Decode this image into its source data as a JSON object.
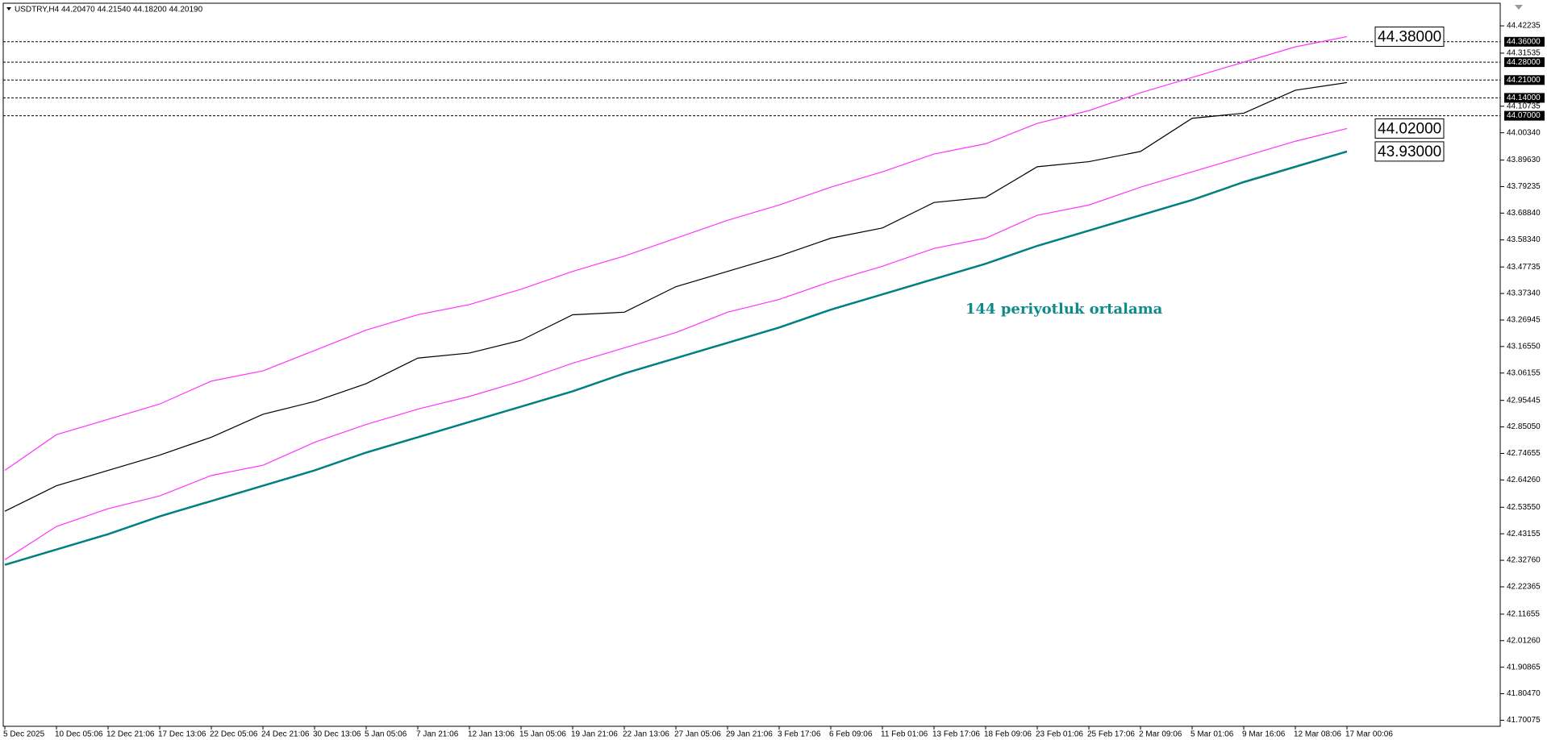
{
  "chart_data": {
    "type": "line",
    "header": "USDTRY,H4  44.20470 44.21540 44.18200 44.20190",
    "annotation": "144 periyotluk ortalama",
    "categories": [
      "5 Dec 2025",
      "10 Dec 05:06",
      "12 Dec 21:06",
      "17 Dec 13:06",
      "22 Dec 05:06",
      "24 Dec 21:06",
      "30 Dec 13:06",
      "5 Jan 05:06",
      "7 Jan 21:06",
      "12 Jan 13:06",
      "15 Jan 05:06",
      "19 Jan 21:06",
      "22 Jan 13:06",
      "27 Jan 05:06",
      "29 Jan 21:06",
      "3 Feb 17:06",
      "6 Feb 09:06",
      "11 Feb 01:06",
      "13 Feb 17:06",
      "18 Feb 09:06",
      "23 Feb 01:06",
      "25 Feb 17:06",
      "2 Mar 09:06",
      "5 Mar 01:06",
      "9 Mar 16:06",
      "12 Mar 08:06",
      "17 Mar 00:06"
    ],
    "series": [
      {
        "color": "#000000",
        "values": [
          42.52,
          42.62,
          42.68,
          42.74,
          42.81,
          42.9,
          42.95,
          43.02,
          43.12,
          43.14,
          43.19,
          43.29,
          43.3,
          43.4,
          43.46,
          43.52,
          43.59,
          43.63,
          43.73,
          43.75,
          43.87,
          43.89,
          43.93,
          44.06,
          44.08,
          44.17,
          44.2
        ]
      },
      {
        "color": "#ff33ff",
        "values": [
          42.68,
          42.82,
          42.88,
          42.94,
          43.03,
          43.07,
          43.15,
          43.23,
          43.29,
          43.33,
          43.39,
          43.46,
          43.52,
          43.59,
          43.66,
          43.72,
          43.79,
          43.85,
          43.92,
          43.96,
          44.04,
          44.09,
          44.16,
          44.22,
          44.28,
          44.34,
          44.38
        ]
      },
      {
        "color": "#ff33ff",
        "values": [
          42.33,
          42.46,
          42.53,
          42.58,
          42.66,
          42.7,
          42.79,
          42.86,
          42.92,
          42.97,
          43.03,
          43.1,
          43.16,
          43.22,
          43.3,
          43.35,
          43.42,
          43.48,
          43.55,
          43.59,
          43.68,
          43.72,
          43.79,
          43.85,
          43.91,
          43.97,
          44.02
        ]
      },
      {
        "color": "#008080",
        "values": [
          42.31,
          42.37,
          42.43,
          42.5,
          42.56,
          42.62,
          42.68,
          42.75,
          42.81,
          42.87,
          42.93,
          42.99,
          43.06,
          43.12,
          43.18,
          43.24,
          43.31,
          43.37,
          43.43,
          43.49,
          43.56,
          43.62,
          43.68,
          43.74,
          43.81,
          43.87,
          43.93
        ]
      }
    ],
    "ylim": [
      41.677,
      44.511
    ],
    "yticks": [
      {
        "value": 44.42235,
        "label": "44.42235"
      },
      {
        "value": 44.31535,
        "label": "44.31535"
      },
      {
        "value": 44.10735,
        "label": "44.10735"
      },
      {
        "value": 44.0034,
        "label": "44.00340"
      },
      {
        "value": 43.8963,
        "label": "43.89630"
      },
      {
        "value": 43.79235,
        "label": "43.79235"
      },
      {
        "value": 43.6884,
        "label": "43.68840"
      },
      {
        "value": 43.5834,
        "label": "43.58340"
      },
      {
        "value": 43.47735,
        "label": "43.47735"
      },
      {
        "value": 43.3734,
        "label": "43.37340"
      },
      {
        "value": 43.26945,
        "label": "43.26945"
      },
      {
        "value": 43.1655,
        "label": "43.16550"
      },
      {
        "value": 43.06155,
        "label": "43.06155"
      },
      {
        "value": 42.95445,
        "label": "42.95445"
      },
      {
        "value": 42.8505,
        "label": "42.85050"
      },
      {
        "value": 42.74655,
        "label": "42.74655"
      },
      {
        "value": 42.6426,
        "label": "42.64260"
      },
      {
        "value": 42.5355,
        "label": "42.53550"
      },
      {
        "value": 42.43155,
        "label": "42.43155"
      },
      {
        "value": 42.3276,
        "label": "42.32760"
      },
      {
        "value": 42.22365,
        "label": "42.22365"
      },
      {
        "value": 42.11655,
        "label": "42.11655"
      },
      {
        "value": 42.0126,
        "label": "42.01260"
      },
      {
        "value": 41.90865,
        "label": "41.90865"
      },
      {
        "value": 41.8047,
        "label": "41.80470"
      },
      {
        "value": 41.70075,
        "label": "41.70075"
      }
    ],
    "levels": [
      {
        "value": 44.36,
        "label": "44.36000"
      },
      {
        "value": 44.28,
        "label": "44.28000"
      },
      {
        "value": 44.21,
        "label": "44.21000"
      },
      {
        "value": 44.14,
        "label": "44.14000"
      },
      {
        "value": 44.07,
        "label": "44.07000"
      }
    ],
    "markers": [
      {
        "value": 44.38,
        "label": "44.38000"
      },
      {
        "value": 44.02,
        "label": "44.02000"
      },
      {
        "value": 43.93,
        "label": "43.93000"
      }
    ]
  }
}
